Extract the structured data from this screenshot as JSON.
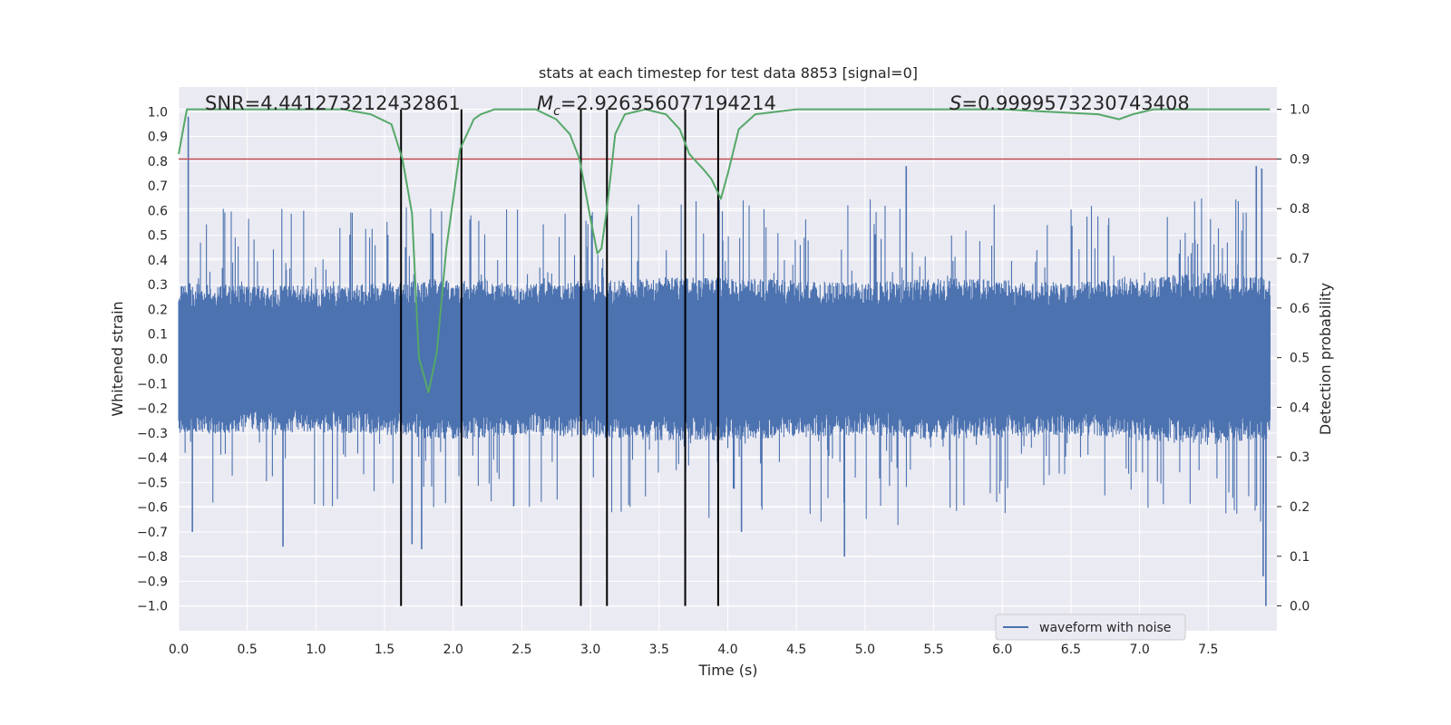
{
  "chart_data": {
    "type": "line",
    "title": "stats at each timestep for test data 8853 [signal=0]",
    "xlabel": "Time (s)",
    "ylabel_left": "Whitened strain",
    "ylabel_right": "Detection probability",
    "xlim": [
      0.0,
      8.0
    ],
    "ylim_left": [
      -1.1,
      1.1
    ],
    "ylim_right": [
      -0.05,
      1.045
    ],
    "x_ticks": [
      "0.0",
      "0.5",
      "1.0",
      "1.5",
      "2.0",
      "2.5",
      "3.0",
      "3.5",
      "4.0",
      "4.5",
      "5.0",
      "5.5",
      "6.0",
      "6.5",
      "7.0",
      "7.5"
    ],
    "left_ticks": [
      "1.0",
      "0.9",
      "0.8",
      "0.7",
      "0.6",
      "0.5",
      "0.4",
      "0.3",
      "0.2",
      "0.1",
      "0.0",
      "-0.1",
      "-0.2",
      "-0.3",
      "-0.4",
      "-0.5",
      "-0.6",
      "-0.7",
      "-0.8",
      "-0.9",
      "-1.0"
    ],
    "right_ticks": [
      "1.0",
      "0.9",
      "0.8",
      "0.7",
      "0.6",
      "0.5",
      "0.4",
      "0.3",
      "0.2",
      "0.1",
      "0.0"
    ],
    "grid": true,
    "annotations": {
      "snr": "SNR=4.441273212432861",
      "mc_symbol": "M",
      "mc_sub": "c",
      "mc_value": "=2.926356077194214",
      "s_symbol": "S",
      "s_value": "=0.9999573230743408"
    },
    "legend": {
      "placement": "lower-right",
      "entries": [
        "waveform with noise"
      ]
    },
    "series": [
      {
        "name": "waveform with noise",
        "axis": "left",
        "color": "#4c72b0",
        "kind": "noise",
        "envelope": {
          "x": [
            0.0,
            0.5,
            1.0,
            1.5,
            2.0,
            2.5,
            3.0,
            3.5,
            4.0,
            4.5,
            5.0,
            5.5,
            6.0,
            6.5,
            7.0,
            7.5,
            7.9
          ],
          "core": [
            0.28,
            0.27,
            0.27,
            0.28,
            0.3,
            0.28,
            0.29,
            0.3,
            0.3,
            0.29,
            0.28,
            0.3,
            0.29,
            0.28,
            0.3,
            0.32,
            0.3
          ],
          "max": [
            0.62,
            0.6,
            0.64,
            0.62,
            0.64,
            0.62,
            0.68,
            0.66,
            0.65,
            0.66,
            0.66,
            0.69,
            0.64,
            0.64,
            0.62,
            0.66,
            0.69
          ]
        },
        "spikes": [
          {
            "x": 0.07,
            "y": 0.98
          },
          {
            "x": 0.1,
            "y": -0.7
          },
          {
            "x": 0.76,
            "y": -0.76
          },
          {
            "x": 1.7,
            "y": -0.75
          },
          {
            "x": 1.77,
            "y": -0.77
          },
          {
            "x": 5.3,
            "y": 0.78
          },
          {
            "x": 4.85,
            "y": -0.8
          },
          {
            "x": 4.1,
            "y": -0.7
          },
          {
            "x": 7.85,
            "y": 0.78
          },
          {
            "x": 7.89,
            "y": 0.77
          },
          {
            "x": 7.9,
            "y": -0.88
          },
          {
            "x": 7.92,
            "y": -1.0
          }
        ]
      },
      {
        "name": "",
        "axis": "right",
        "color": "#55a868",
        "x": [
          0.0,
          0.06,
          0.5,
          1.0,
          1.2,
          1.4,
          1.55,
          1.63,
          1.7,
          1.75,
          1.82,
          1.88,
          1.95,
          2.05,
          2.15,
          2.2,
          2.3,
          2.45,
          2.6,
          2.75,
          2.85,
          2.92,
          3.0,
          3.05,
          3.08,
          3.12,
          3.18,
          3.25,
          3.4,
          3.55,
          3.65,
          3.72,
          3.82,
          3.88,
          3.95,
          4.0,
          4.08,
          4.2,
          4.5,
          5.0,
          6.0,
          6.7,
          6.85,
          6.95,
          7.1,
          7.5,
          7.95
        ],
        "y": [
          0.91,
          1.0,
          1.0,
          1.0,
          1.0,
          0.99,
          0.97,
          0.9,
          0.79,
          0.5,
          0.43,
          0.51,
          0.72,
          0.92,
          0.98,
          0.99,
          1.0,
          1.0,
          1.0,
          0.98,
          0.95,
          0.9,
          0.78,
          0.71,
          0.72,
          0.8,
          0.95,
          0.99,
          1.0,
          0.99,
          0.96,
          0.91,
          0.88,
          0.86,
          0.82,
          0.87,
          0.96,
          0.99,
          1.0,
          1.0,
          1.0,
          0.99,
          0.98,
          0.99,
          1.0,
          1.0,
          1.0
        ]
      },
      {
        "name": "",
        "axis": "right",
        "color": "#c44e52",
        "kind": "hline",
        "y": 0.9
      }
    ],
    "vlines": [
      1.62,
      2.06,
      2.93,
      3.12,
      3.69,
      3.93
    ]
  }
}
